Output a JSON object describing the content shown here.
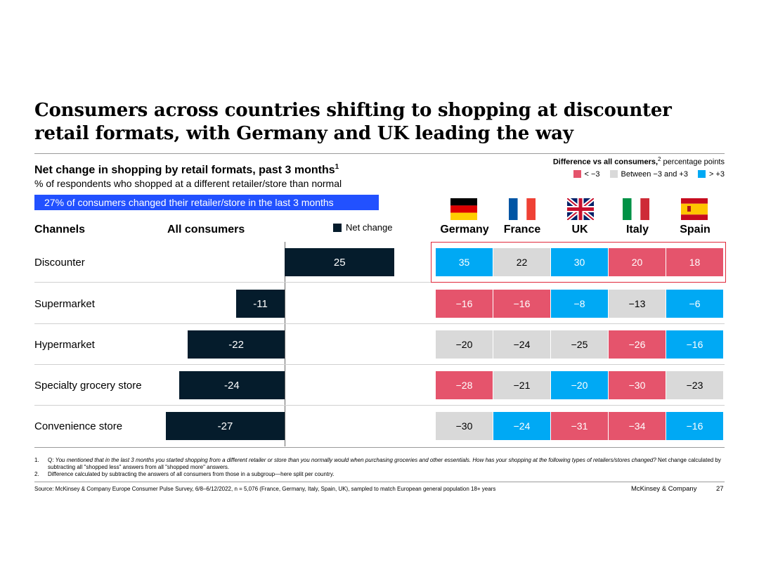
{
  "title": {
    "line1": "Consumers across countries shifting to shopping at discounter",
    "line2": "retail formats, with Germany and UK leading the way"
  },
  "subtitle": "Net change in shopping by retail formats, past 3 months",
  "subtitle_note": "1",
  "unit": "% of respondents who shopped at a different retailer/store than normal",
  "highlight": "27% of consumers changed their retailer/store in the last 3 months",
  "legend": {
    "title_bold": "Difference vs all consumers,",
    "title_note": "2",
    "title_rest": " percentage points",
    "items": [
      {
        "label": "< −3",
        "color": "#e5546c"
      },
      {
        "label": "Between −3 and +3",
        "color": "#d9d9d9"
      },
      {
        "label": "> +3",
        "color": "#00a9f4"
      }
    ]
  },
  "headers": {
    "channels": "Channels",
    "all_consumers": "All consumers",
    "net_change": "Net change"
  },
  "countries": [
    "Germany",
    "France",
    "UK",
    "Italy",
    "Spain"
  ],
  "chart_data": {
    "type": "bar",
    "orientation": "horizontal",
    "categories": [
      "Discounter",
      "Supermarket",
      "Hypermarket",
      "Specialty grocery store",
      "Convenience store"
    ],
    "series": [
      {
        "name": "Net change",
        "values": [
          25,
          -11,
          -22,
          -24,
          -27
        ],
        "labels": [
          "25",
          "-11",
          "-22",
          "-24",
          "-27"
        ],
        "color": "#051c2c"
      }
    ],
    "xlim": [
      -27,
      25
    ],
    "country_table": {
      "columns": [
        "Germany",
        "France",
        "UK",
        "Italy",
        "Spain"
      ],
      "values": [
        [
          35,
          22,
          30,
          20,
          18
        ],
        [
          -16,
          -16,
          -8,
          -13,
          -6
        ],
        [
          -20,
          -24,
          -25,
          -26,
          -16
        ],
        [
          -28,
          -21,
          -20,
          -30,
          -23
        ],
        [
          -30,
          -24,
          -31,
          -34,
          -16
        ]
      ],
      "labels": [
        [
          "35",
          "22",
          "30",
          "20",
          "18"
        ],
        [
          "−16",
          "−16",
          "−8",
          "−13",
          "−6"
        ],
        [
          "−20",
          "−24",
          "−25",
          "−26",
          "−16"
        ],
        [
          "−28",
          "−21",
          "−20",
          "−30",
          "−23"
        ],
        [
          "−30",
          "−24",
          "−31",
          "−34",
          "−16"
        ]
      ],
      "classes": [
        [
          "high",
          "mid",
          "high",
          "low",
          "low"
        ],
        [
          "low",
          "low",
          "high",
          "mid",
          "high"
        ],
        [
          "mid",
          "mid",
          "mid",
          "low",
          "high"
        ],
        [
          "low",
          "mid",
          "high",
          "low",
          "mid"
        ],
        [
          "mid",
          "high",
          "low",
          "low",
          "high"
        ]
      ]
    },
    "highlighted_row": "Discounter"
  },
  "footnotes": [
    {
      "num": "1.",
      "q_label": "Q: ",
      "q_italic": "You mentioned that in the last 3 months you started shopping from a different retailer or store than you normally would when purchasing groceries and other essentials. How has your shopping at the following types of retailers/stores changed?",
      "rest": " Net change calculated by subtracting all \"shopped less\" answers from all \"shopped more\" answers."
    },
    {
      "num": "2.",
      "q_label": "",
      "q_italic": "",
      "rest": "Difference calculated by subtracting the answers of all consumers from those in a subgroup—here split per country."
    }
  ],
  "source": "Source: McKinsey & Company Europe Consumer Pulse Survey, 6/8–6/12/2022, n = 5,076 (France, Germany, Italy, Spain, UK), sampled to match European general population 18+ years",
  "brand": "McKinsey & Company",
  "page_number": "27"
}
